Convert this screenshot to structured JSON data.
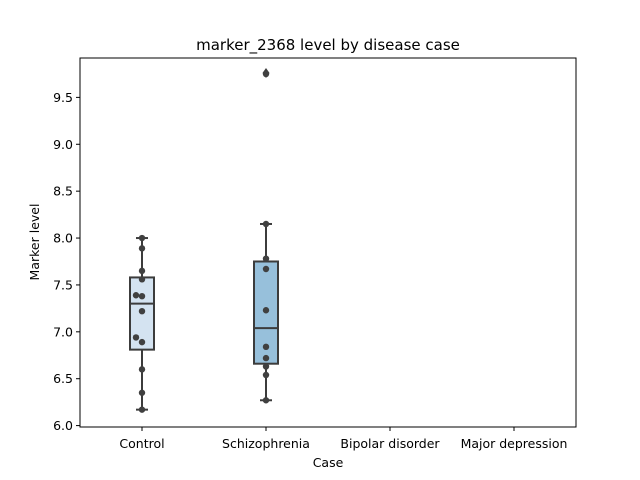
{
  "chart_data": {
    "type": "box",
    "title": "marker_2368 level by disease case",
    "xlabel": "Case",
    "ylabel": "Marker level",
    "categories": [
      "Control",
      "Schizophrenia",
      "Bipolar disorder",
      "Major depression"
    ],
    "ylim": [
      5.985,
      9.92
    ],
    "yticks": [
      6.0,
      6.5,
      7.0,
      7.5,
      8.0,
      8.5,
      9.0,
      9.5
    ],
    "ytick_labels": [
      "6.0",
      "6.5",
      "7.0",
      "7.5",
      "8.0",
      "8.5",
      "9.0",
      "9.5"
    ],
    "grid": false,
    "boxes": [
      {
        "category": "Control",
        "whisker_low": 6.17,
        "q1": 6.81,
        "median": 7.3,
        "q3": 7.58,
        "whisker_high": 8.0,
        "color": "#d4e3f1",
        "outliers": []
      },
      {
        "category": "Schizophrenia",
        "whisker_low": 6.27,
        "q1": 6.66,
        "median": 7.04,
        "q3": 7.75,
        "whisker_high": 8.15,
        "color": "#97c0db",
        "outliers": [
          9.76
        ]
      },
      {
        "category": "Bipolar disorder",
        "empty": true
      },
      {
        "category": "Major depression",
        "empty": true
      }
    ],
    "points": [
      {
        "category": "Control",
        "values": [
          6.17,
          6.35,
          6.6,
          6.89,
          6.94,
          7.22,
          7.38,
          7.39,
          7.56,
          7.65,
          7.89,
          8.0
        ]
      },
      {
        "category": "Schizophrenia",
        "values": [
          6.27,
          6.54,
          6.63,
          6.72,
          6.84,
          7.23,
          7.67,
          7.78,
          8.15,
          9.75
        ]
      }
    ],
    "colors": {
      "box_edge": "#3c3c3c",
      "point": "#404040"
    }
  }
}
